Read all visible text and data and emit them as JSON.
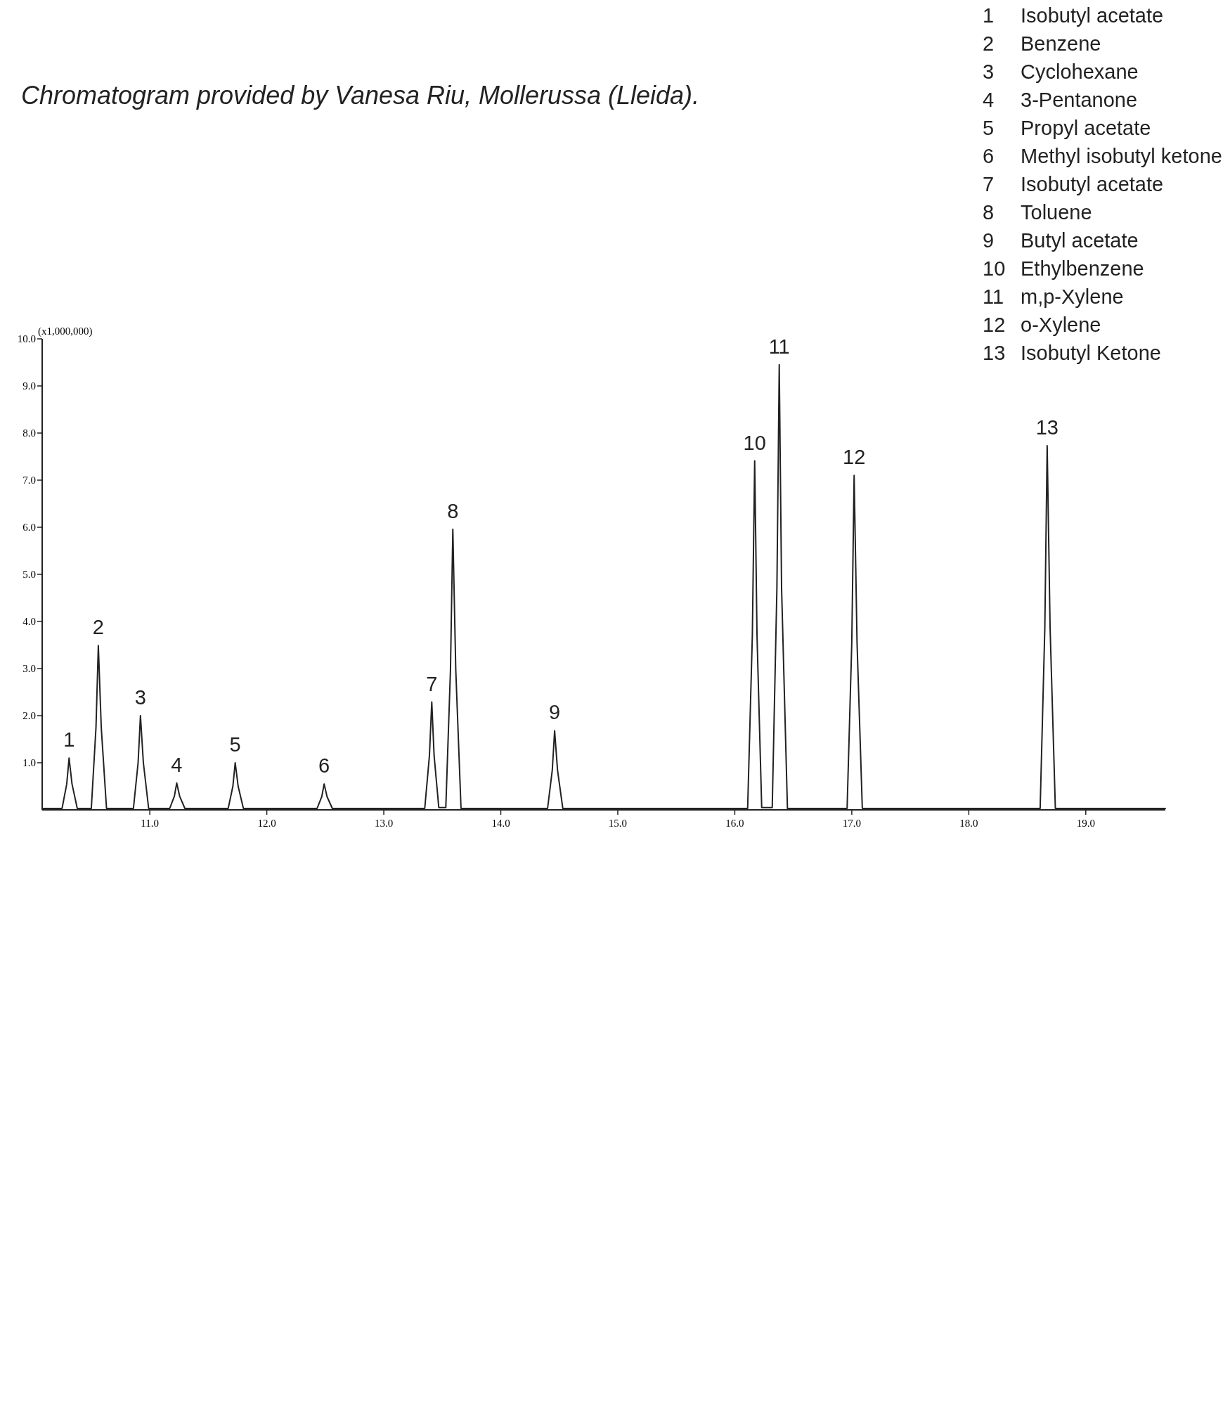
{
  "chart_data": {
    "type": "line",
    "title": "Chromatogram provided by Vanesa Riu, Mollerussa (Lleida).",
    "ylabel": "(x1,000,000)",
    "xlim": [
      10.08,
      19.68
    ],
    "ylim": [
      0,
      10
    ],
    "xticks": [
      {
        "value": 11,
        "label": "11.0"
      },
      {
        "value": 12,
        "label": "12.0"
      },
      {
        "value": 13,
        "label": "13.0"
      },
      {
        "value": 14,
        "label": "14.0"
      },
      {
        "value": 15,
        "label": "15.0"
      },
      {
        "value": 16,
        "label": "16.0"
      },
      {
        "value": 17,
        "label": "17.0"
      },
      {
        "value": 18,
        "label": "18.0"
      },
      {
        "value": 19,
        "label": "19.0"
      }
    ],
    "yticks": [
      {
        "value": 1,
        "label": "1.0"
      },
      {
        "value": 2,
        "label": "2.0"
      },
      {
        "value": 3,
        "label": "3.0"
      },
      {
        "value": 4,
        "label": "4.0"
      },
      {
        "value": 5,
        "label": "5.0"
      },
      {
        "value": 6,
        "label": "6.0"
      },
      {
        "value": 7,
        "label": "7.0"
      },
      {
        "value": 8,
        "label": "8.0"
      },
      {
        "value": 9,
        "label": "9.0"
      },
      {
        "value": 10,
        "label": "10.0"
      }
    ],
    "grid": false,
    "marker": "none",
    "line_style": "solid",
    "series": [
      {
        "color": "#222222",
        "x": [
          10.08,
          10.25,
          10.29,
          10.31,
          10.335,
          10.38,
          10.5,
          10.54,
          10.56,
          10.585,
          10.63,
          10.86,
          10.9,
          10.92,
          10.945,
          10.99,
          11.17,
          11.21,
          11.23,
          11.255,
          11.3,
          11.67,
          11.71,
          11.73,
          11.755,
          11.8,
          12.43,
          12.47,
          12.49,
          12.515,
          12.56,
          13.35,
          13.39,
          13.41,
          13.43,
          13.47,
          13.53,
          13.57,
          13.59,
          13.615,
          13.66,
          14.4,
          14.44,
          14.46,
          14.485,
          14.53,
          16.11,
          16.15,
          16.17,
          16.19,
          16.23,
          16.32,
          16.36,
          16.38,
          16.4,
          16.45,
          16.96,
          17.0,
          17.02,
          17.045,
          17.09,
          18.61,
          18.65,
          18.67,
          18.695,
          18.74,
          19.68
        ],
        "values": [
          0.03,
          0.03,
          0.55,
          1.1,
          0.55,
          0.03,
          0.03,
          1.75,
          3.49,
          1.75,
          0.03,
          0.03,
          1.0,
          2.0,
          1.0,
          0.03,
          0.03,
          0.29,
          0.57,
          0.29,
          0.03,
          0.03,
          0.5,
          1.0,
          0.5,
          0.03,
          0.03,
          0.28,
          0.55,
          0.28,
          0.03,
          0.03,
          1.15,
          2.29,
          1.15,
          0.05,
          0.05,
          2.98,
          5.96,
          2.98,
          0.03,
          0.03,
          0.84,
          1.68,
          0.84,
          0.03,
          0.03,
          3.7,
          7.41,
          3.7,
          0.05,
          0.05,
          4.7,
          9.45,
          4.7,
          0.03,
          0.03,
          3.55,
          7.1,
          3.55,
          0.03,
          0.03,
          3.87,
          7.73,
          3.87,
          0.03,
          0.03
        ]
      }
    ],
    "annotations": [
      {
        "text": "1",
        "x": 10.31,
        "y": 1.1
      },
      {
        "text": "2",
        "x": 10.56,
        "y": 3.49
      },
      {
        "text": "3",
        "x": 10.92,
        "y": 2.0
      },
      {
        "text": "4",
        "x": 11.23,
        "y": 0.57
      },
      {
        "text": "5",
        "x": 11.73,
        "y": 1.0
      },
      {
        "text": "6",
        "x": 12.49,
        "y": 0.55
      },
      {
        "text": "7",
        "x": 13.41,
        "y": 2.29
      },
      {
        "text": "8",
        "x": 13.59,
        "y": 5.96
      },
      {
        "text": "9",
        "x": 14.46,
        "y": 1.68
      },
      {
        "text": "10",
        "x": 16.17,
        "y": 7.41
      },
      {
        "text": "11",
        "x": 16.38,
        "y": 9.45
      },
      {
        "text": "12",
        "x": 17.02,
        "y": 7.1
      },
      {
        "text": "13",
        "x": 18.67,
        "y": 7.73
      },
      "1 Isobutyl acetate",
      "2 Benzene",
      "3 Cyclohexane",
      "4 3-Pentanone",
      "5 Propyl acetate",
      "6 Methyl isobutyl ketone",
      "7 Isobutyl acetate",
      "8 Toluene",
      "9 Butyl acetate",
      "10 Ethylbenzene",
      "11 m,p-Xylene",
      "12 o-Xylene",
      "13 Isobutyl Ketone"
    ]
  }
}
